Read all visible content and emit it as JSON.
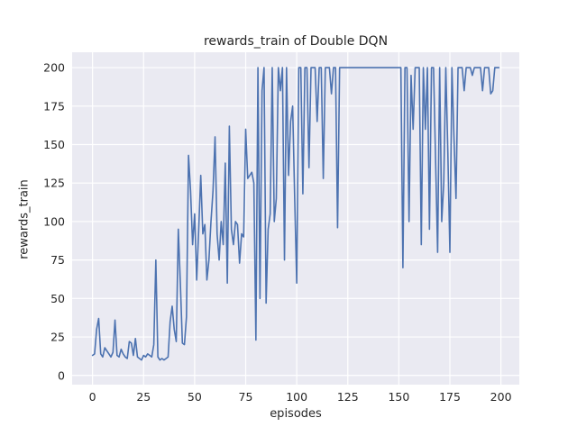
{
  "figure": {
    "title": "rewards_train of Double DQN",
    "xlabel": "episodes",
    "ylabel": "rewards_train"
  },
  "chart_data": {
    "type": "line",
    "title": "rewards_train of Double DQN",
    "xlabel": "episodes",
    "ylabel": "rewards_train",
    "xlim": [
      -10,
      209
    ],
    "ylim": [
      -6,
      210
    ],
    "xticks": [
      0,
      25,
      50,
      75,
      100,
      125,
      150,
      175,
      200
    ],
    "yticks": [
      0,
      25,
      50,
      75,
      100,
      125,
      150,
      175,
      200
    ],
    "grid": true,
    "legend": "none",
    "colors": {
      "line": "#4c72b0",
      "axes_bg": "#eaeaf2",
      "grid": "#ffffff",
      "text": "#262626",
      "figure_bg": "#ffffff"
    },
    "x_start": 0,
    "x_step": 1,
    "values": [
      13,
      14,
      30,
      37,
      14,
      12,
      18,
      16,
      14,
      12,
      15,
      36,
      13,
      12,
      17,
      14,
      12,
      11,
      22,
      21,
      13,
      24,
      12,
      11,
      10,
      13,
      12,
      14,
      13,
      12,
      20,
      75,
      12,
      10,
      11,
      10,
      11,
      12,
      35,
      45,
      30,
      22,
      95,
      60,
      21,
      20,
      38,
      143,
      120,
      85,
      105,
      62,
      95,
      130,
      92,
      98,
      62,
      75,
      100,
      120,
      155,
      92,
      75,
      100,
      85,
      138,
      60,
      162,
      95,
      85,
      100,
      98,
      73,
      92,
      90,
      160,
      128,
      130,
      132,
      125,
      23,
      200,
      50,
      185,
      200,
      47,
      95,
      105,
      200,
      100,
      115,
      200,
      185,
      200,
      75,
      200,
      130,
      165,
      175,
      115,
      60,
      200,
      200,
      118,
      200,
      200,
      135,
      200,
      200,
      200,
      165,
      200,
      200,
      128,
      200,
      200,
      200,
      183,
      200,
      200,
      96,
      200,
      200,
      200,
      200,
      200,
      200,
      200,
      200,
      200,
      200,
      200,
      200,
      200,
      200,
      200,
      200,
      200,
      200,
      200,
      200,
      200,
      200,
      200,
      200,
      200,
      200,
      200,
      200,
      200,
      200,
      200,
      70,
      200,
      200,
      100,
      195,
      160,
      200,
      200,
      200,
      85,
      200,
      160,
      200,
      95,
      200,
      200,
      140,
      80,
      200,
      100,
      125,
      200,
      145,
      80,
      200,
      155,
      115,
      200,
      200,
      200,
      185,
      200,
      200,
      200,
      195,
      200,
      200,
      200,
      200,
      185,
      200,
      200,
      200,
      183,
      185,
      200,
      200,
      200
    ]
  }
}
